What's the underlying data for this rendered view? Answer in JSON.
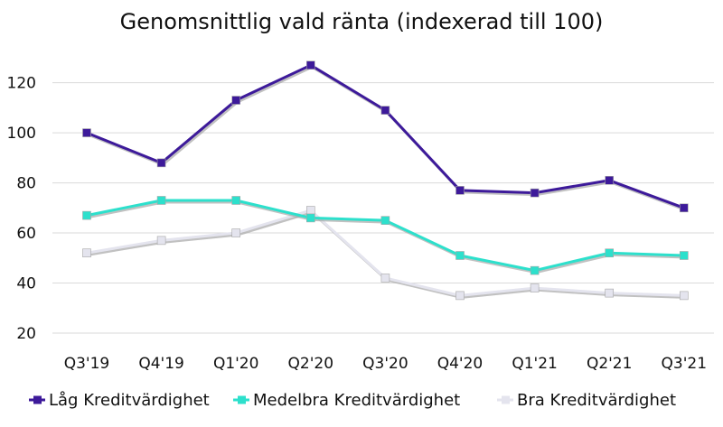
{
  "colors": {
    "low": "#3d1a9a",
    "medium": "#2de0cc",
    "good": "#e4e4ee",
    "shadow": "#a6a6a6",
    "grid": "#d9d9d9",
    "text": "#111111"
  },
  "chart_data": {
    "type": "line",
    "title": "Genomsnittlig vald ränta (indexerad till 100)",
    "xlabel": "",
    "ylabel": "",
    "categories": [
      "Q3'19",
      "Q4'19",
      "Q1'20",
      "Q2'20",
      "Q3'20",
      "Q4'20",
      "Q1'21",
      "Q2'21",
      "Q3'21"
    ],
    "ylim": [
      20,
      135
    ],
    "yticks": [
      20,
      40,
      60,
      80,
      100,
      120
    ],
    "grid": true,
    "legend_position": "bottom",
    "series": [
      {
        "name": "Låg Kreditvärdighet",
        "color_key": "low",
        "values": [
          100,
          88,
          113,
          127,
          109,
          77,
          76,
          81,
          70
        ]
      },
      {
        "name": "Medelbra Kreditvärdighet",
        "color_key": "medium",
        "values": [
          67,
          73,
          73,
          66,
          65,
          51,
          45,
          52,
          51
        ]
      },
      {
        "name": "Bra Kreditvärdighet",
        "color_key": "good",
        "values": [
          52,
          57,
          60,
          69,
          42,
          35,
          38,
          36,
          35
        ]
      }
    ]
  }
}
